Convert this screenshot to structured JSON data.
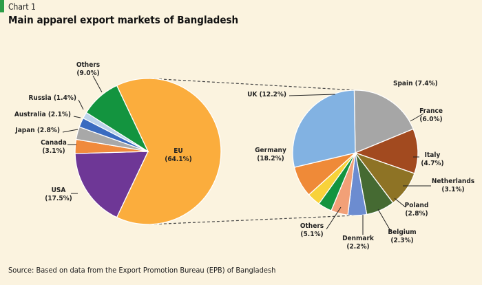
{
  "header": {
    "chart_number": "Chart 1",
    "title": "Main apparel export markets of Bangladesh"
  },
  "source": "Source: Based on data from the Export Promotion Bureau (EPB) of Bangladesh",
  "colors": {
    "accent": "#2e9e48"
  },
  "chart_data": [
    {
      "type": "pie",
      "title": "Main apparel export markets of Bangladesh",
      "slices": [
        {
          "name": "EU",
          "value": 64.1,
          "label": "(64.1%)",
          "color": "#fbad3d"
        },
        {
          "name": "USA",
          "value": 17.5,
          "label": "(17.5%)",
          "color": "#6e3796"
        },
        {
          "name": "Canada",
          "value": 3.1,
          "label": "(3.1%)",
          "color": "#f08a3c"
        },
        {
          "name": "Japan",
          "value": 2.8,
          "label": "(2.8%)",
          "color": "#a8a8a8"
        },
        {
          "name": "Australia",
          "value": 2.1,
          "label": "(2.1%)",
          "color": "#3a6bc0"
        },
        {
          "name": "Russia",
          "value": 1.4,
          "label": "(1.4%)",
          "color": "#bcd3ea"
        },
        {
          "name": "Others",
          "value": 9.0,
          "label": "(9.0%)",
          "color": "#13943f"
        }
      ]
    },
    {
      "type": "pie",
      "title": "EU",
      "slices": [
        {
          "name": "UK",
          "value": 12.2,
          "label": "(12.2%)",
          "color": "#a6a6a6"
        },
        {
          "name": "Spain",
          "value": 7.4,
          "label": "(7.4%)",
          "color": "#a24a1f"
        },
        {
          "name": "France",
          "value": 6.0,
          "label": "(6.0%)",
          "color": "#8e7325"
        },
        {
          "name": "Italy",
          "value": 4.7,
          "label": "(4.7%)",
          "color": "#456a32"
        },
        {
          "name": "Netherlands",
          "value": 3.1,
          "label": "(3.1%)",
          "color": "#6c8cd0"
        },
        {
          "name": "Poland",
          "value": 2.8,
          "label": "(2.8%)",
          "color": "#f2a077"
        },
        {
          "name": "Belgium",
          "value": 2.3,
          "label": "(2.3%)",
          "color": "#13943f"
        },
        {
          "name": "Denmark",
          "value": 2.2,
          "label": "(2.2%)",
          "color": "#f8d23a"
        },
        {
          "name": "Others",
          "value": 5.1,
          "label": "(5.1%)",
          "color": "#ef8a38"
        },
        {
          "name": "Germany",
          "value": 18.2,
          "label": "(18.2%)",
          "color": "#82b2e2"
        }
      ]
    }
  ]
}
